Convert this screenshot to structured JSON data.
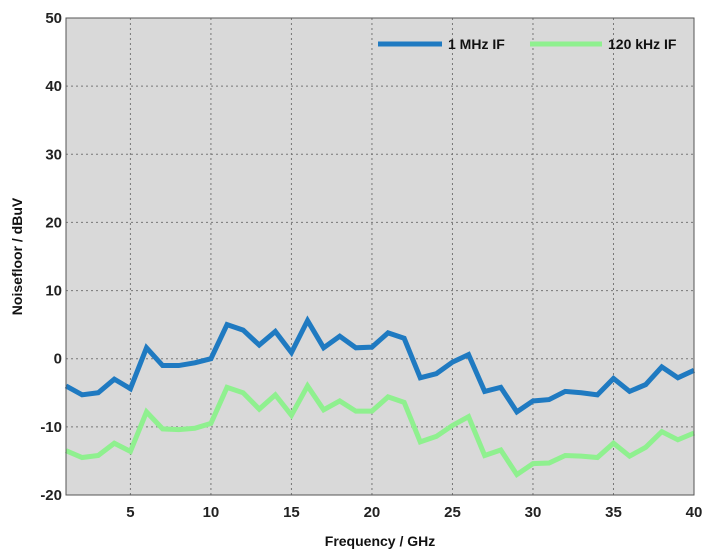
{
  "chart_data": {
    "type": "line",
    "title": "",
    "xlabel": "Frequency / GHz",
    "ylabel": "Noisefloor / dBuV",
    "xlim": [
      1,
      40
    ],
    "ylim": [
      -20,
      50
    ],
    "xticks": [
      5,
      10,
      15,
      20,
      25,
      30,
      35,
      40
    ],
    "yticks": [
      -20,
      -10,
      0,
      10,
      20,
      30,
      40,
      50
    ],
    "grid": true,
    "legend_position": "top-right",
    "background_color": "#d9d9d9",
    "x": [
      1,
      2,
      3,
      4,
      5,
      6,
      7,
      8,
      9,
      10,
      11,
      12,
      13,
      14,
      15,
      16,
      17,
      18,
      19,
      20,
      21,
      22,
      23,
      24,
      25,
      26,
      27,
      28,
      29,
      30,
      31,
      32,
      33,
      34,
      35,
      36,
      37,
      38,
      39,
      40
    ],
    "series": [
      {
        "name": "1 MHz IF",
        "color": "#1f7ac1",
        "values": [
          -4,
          -5.3,
          -5,
          -3,
          -4.4,
          1.6,
          -1,
          -1,
          -0.6,
          0,
          5,
          4.2,
          2,
          4,
          0.9,
          5.6,
          1.6,
          3.3,
          1.6,
          1.7,
          3.8,
          3,
          -2.8,
          -2.2,
          -0.5,
          0.6,
          -4.8,
          -4.2,
          -7.8,
          -6.2,
          -6,
          -4.8,
          -5,
          -5.3,
          -2.9,
          -4.8,
          -3.8,
          -1.2,
          -2.8,
          -1.7
        ]
      },
      {
        "name": "120 kHz IF",
        "color": "#8ff08f",
        "values": [
          -13.5,
          -14.5,
          -14.2,
          -12.4,
          -13.6,
          -7.8,
          -10.3,
          -10.4,
          -10.2,
          -9.5,
          -4.2,
          -5,
          -7.4,
          -5.3,
          -8.3,
          -4,
          -7.5,
          -6.2,
          -7.7,
          -7.7,
          -5.6,
          -6.4,
          -12.2,
          -11.4,
          -9.8,
          -8.5,
          -14.2,
          -13.4,
          -17,
          -15.4,
          -15.3,
          -14.2,
          -14.3,
          -14.5,
          -12.4,
          -14.3,
          -13,
          -10.7,
          -11.9,
          -10.9
        ]
      }
    ]
  }
}
